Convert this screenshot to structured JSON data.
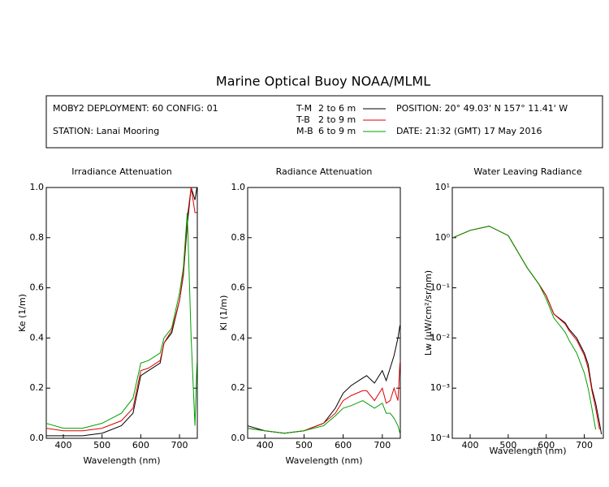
{
  "header": {
    "title": "Marine Optical Buoy NOAA/MLML",
    "deployment": "MOBY2 DEPLOYMENT: 60 CONFIG: 01",
    "station": "STATION: Lanai Mooring",
    "position": "POSITION: 20° 49.03' N   157° 11.41' W",
    "date": "DATE: 21:32 (GMT) 17 May 2016",
    "legend": [
      {
        "name": "T-M",
        "range": "2 to 6  m",
        "color": "#000000"
      },
      {
        "name": "T-B",
        "range": "2 to 9  m",
        "color": "#e00000"
      },
      {
        "name": "M-B",
        "range": "6 to 9  m",
        "color": "#00a000"
      }
    ]
  },
  "chart_data": [
    {
      "type": "line",
      "title": "Irradiance Attenuation",
      "x_label": "Wavelength (nm)",
      "y_label": "Ke  (1/m)",
      "xlim": [
        356,
        746
      ],
      "xticks": [
        400,
        500,
        600,
        700
      ],
      "ylim": [
        0,
        1
      ],
      "yticks": [
        {
          "value": 0,
          "label": "0.0"
        },
        0.2,
        0.4,
        0.6,
        0.8,
        {
          "value": 1,
          "label": "1.0"
        }
      ],
      "x": [
        355,
        400,
        450,
        500,
        550,
        580,
        600,
        620,
        650,
        660,
        680,
        700,
        710,
        720,
        730,
        740,
        745
      ],
      "series": [
        {
          "color": "#000000",
          "values": [
            0.01,
            0.01,
            0.01,
            0.02,
            0.05,
            0.1,
            0.25,
            0.27,
            0.3,
            0.38,
            0.42,
            0.55,
            0.65,
            0.85,
            1.0,
            0.95,
            1.0
          ]
        },
        {
          "color": "#e00000",
          "values": [
            0.04,
            0.03,
            0.03,
            0.04,
            0.07,
            0.12,
            0.27,
            0.28,
            0.31,
            0.38,
            0.43,
            0.55,
            0.66,
            0.88,
            1.0,
            0.9,
            0.9
          ]
        },
        {
          "color": "#00a000",
          "values": [
            0.06,
            0.04,
            0.04,
            0.06,
            0.1,
            0.16,
            0.3,
            0.31,
            0.34,
            0.4,
            0.44,
            0.58,
            0.68,
            0.9,
            0.4,
            0.05,
            0.3
          ]
        }
      ]
    },
    {
      "type": "line",
      "title": "Radiance Attenuation",
      "x_label": "Wavelength (nm)",
      "y_label": "Kl  (1/m)",
      "xlim": [
        356,
        746
      ],
      "xticks": [
        400,
        500,
        600,
        700
      ],
      "ylim": [
        0,
        1
      ],
      "yticks": [
        {
          "value": 0,
          "label": "0.0"
        },
        0.2,
        0.4,
        0.6,
        0.8,
        {
          "value": 1,
          "label": "1.0"
        }
      ],
      "x": [
        355,
        400,
        450,
        500,
        550,
        580,
        600,
        620,
        650,
        660,
        680,
        700,
        710,
        720,
        730,
        740,
        745
      ],
      "series": [
        {
          "color": "#000000",
          "values": [
            0.05,
            0.03,
            0.02,
            0.03,
            0.06,
            0.12,
            0.18,
            0.21,
            0.24,
            0.25,
            0.22,
            0.27,
            0.23,
            0.28,
            0.33,
            0.4,
            0.45
          ]
        },
        {
          "color": "#e00000",
          "values": [
            0.04,
            0.03,
            0.02,
            0.03,
            0.06,
            0.1,
            0.15,
            0.17,
            0.19,
            0.19,
            0.15,
            0.2,
            0.14,
            0.15,
            0.2,
            0.15,
            0.3
          ]
        },
        {
          "color": "#00a000",
          "values": [
            0.04,
            0.03,
            0.02,
            0.03,
            0.05,
            0.09,
            0.12,
            0.13,
            0.15,
            0.14,
            0.12,
            0.14,
            0.1,
            0.1,
            0.08,
            0.05,
            0.02
          ]
        }
      ]
    },
    {
      "type": "line",
      "title": "Water Leaving Radiance",
      "x_label": "Wavelength (nm)",
      "y_label": "Lw  (μW/cm²/sr/nm)",
      "log_y": true,
      "xlim": [
        353,
        750
      ],
      "xticks": [
        400,
        500,
        600,
        700
      ],
      "ylim": [
        0.0001,
        10
      ],
      "yticks": [
        {
          "value": 0.0001,
          "label": "10⁻⁴"
        },
        {
          "value": 0.001,
          "label": "10⁻³"
        },
        {
          "value": 0.01,
          "label": "10⁻²"
        },
        {
          "value": 0.1,
          "label": "10⁻¹"
        },
        {
          "value": 1,
          "label": "10⁰"
        },
        {
          "value": 10,
          "label": "10¹"
        }
      ],
      "x": [
        355,
        400,
        450,
        500,
        550,
        580,
        600,
        620,
        650,
        660,
        680,
        700,
        710,
        720,
        730,
        740,
        745
      ],
      "series": [
        {
          "color": "#000000",
          "values": [
            1.0,
            1.4,
            1.7,
            1.1,
            0.25,
            0.12,
            0.07,
            0.03,
            0.02,
            0.015,
            0.01,
            0.005,
            0.003,
            0.001,
            0.0005,
            0.0002,
            0.00012
          ]
        },
        {
          "color": "#e00000",
          "values": [
            1.0,
            1.4,
            1.7,
            1.1,
            0.25,
            0.12,
            0.07,
            0.03,
            0.019,
            0.014,
            0.009,
            0.0045,
            0.0025,
            0.0009,
            0.0004,
            0.00015,
            null
          ]
        },
        {
          "color": "#00a000",
          "values": [
            1.0,
            1.4,
            1.7,
            1.1,
            0.25,
            0.12,
            0.06,
            0.025,
            0.013,
            0.009,
            0.005,
            0.002,
            0.001,
            0.0004,
            0.00015,
            null,
            null
          ]
        }
      ]
    }
  ]
}
